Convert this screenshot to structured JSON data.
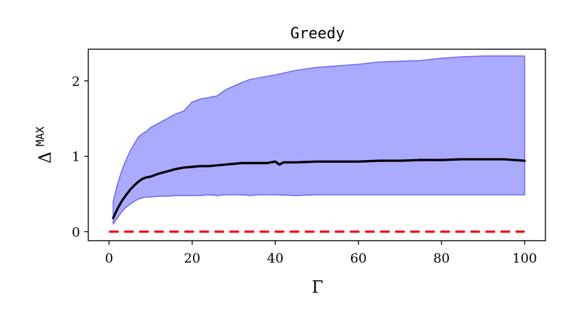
{
  "chart_data": {
    "type": "line",
    "title": "Greedy",
    "xlabel": "Γ",
    "ylabel": "Δ",
    "ylabel_superscript": "MAX",
    "xlim": [
      -5,
      105
    ],
    "ylim": [
      -0.12,
      2.42
    ],
    "xticks": [
      0,
      20,
      40,
      60,
      80,
      100
    ],
    "yticks": [
      0,
      1,
      2
    ],
    "grid": false,
    "legend": "none",
    "colors": {
      "band_fill": "#aaaaff",
      "band_edge": "#6b6bf0",
      "mean_line": "#000000",
      "baseline": "#ee1111"
    },
    "series": [
      {
        "kind": "band",
        "x": [
          1,
          2,
          3,
          4,
          5,
          6,
          7,
          8,
          9,
          10,
          12,
          14,
          16,
          18,
          20,
          22,
          24,
          26,
          28,
          30,
          32,
          34,
          36,
          38,
          40,
          45,
          50,
          55,
          60,
          65,
          70,
          75,
          80,
          85,
          90,
          95,
          100
        ],
        "upper": [
          0.4,
          0.62,
          0.8,
          0.94,
          1.06,
          1.16,
          1.25,
          1.3,
          1.33,
          1.38,
          1.44,
          1.5,
          1.56,
          1.6,
          1.72,
          1.76,
          1.78,
          1.8,
          1.88,
          1.93,
          1.98,
          2.02,
          2.04,
          2.06,
          2.08,
          2.14,
          2.18,
          2.2,
          2.22,
          2.25,
          2.26,
          2.27,
          2.3,
          2.32,
          2.33,
          2.33,
          2.33
        ],
        "lower": [
          0.1,
          0.18,
          0.26,
          0.32,
          0.36,
          0.4,
          0.43,
          0.45,
          0.46,
          0.46,
          0.47,
          0.47,
          0.48,
          0.48,
          0.48,
          0.48,
          0.49,
          0.48,
          0.49,
          0.49,
          0.49,
          0.48,
          0.49,
          0.49,
          0.49,
          0.48,
          0.49,
          0.49,
          0.49,
          0.49,
          0.49,
          0.49,
          0.49,
          0.49,
          0.49,
          0.49,
          0.49
        ]
      },
      {
        "kind": "line",
        "x": [
          1,
          2,
          3,
          4,
          5,
          6,
          7,
          8,
          9,
          10,
          12,
          14,
          16,
          18,
          20,
          22,
          24,
          26,
          28,
          30,
          32,
          34,
          36,
          38,
          40,
          41,
          42,
          45,
          50,
          55,
          60,
          65,
          70,
          75,
          80,
          85,
          90,
          95,
          100
        ],
        "y": [
          0.18,
          0.3,
          0.4,
          0.48,
          0.55,
          0.61,
          0.66,
          0.7,
          0.72,
          0.73,
          0.77,
          0.8,
          0.83,
          0.85,
          0.86,
          0.87,
          0.87,
          0.88,
          0.89,
          0.9,
          0.91,
          0.91,
          0.91,
          0.91,
          0.93,
          0.89,
          0.92,
          0.92,
          0.93,
          0.93,
          0.93,
          0.94,
          0.94,
          0.95,
          0.95,
          0.96,
          0.96,
          0.96,
          0.94
        ]
      },
      {
        "kind": "baseline",
        "x": [
          0,
          100
        ],
        "y": [
          0,
          0
        ]
      }
    ]
  }
}
